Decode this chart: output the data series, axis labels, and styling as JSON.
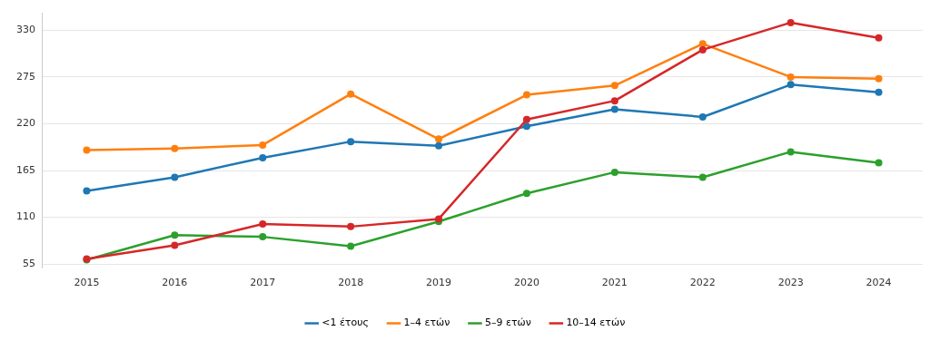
{
  "chart_data": {
    "type": "line",
    "categories": [
      "2015",
      "2016",
      "2017",
      "2018",
      "2019",
      "2020",
      "2021",
      "2022",
      "2023",
      "2024"
    ],
    "series": [
      {
        "name": "<1 έτους",
        "color": "#1f77b4",
        "values": [
          141,
          157,
          180,
          199,
          194,
          217,
          237,
          228,
          266,
          257
        ]
      },
      {
        "name": "1–4 ετών",
        "color": "#ff7f0e",
        "values": [
          189,
          191,
          195,
          255,
          202,
          254,
          265,
          314,
          275,
          273
        ]
      },
      {
        "name": "5–9 ετών",
        "color": "#2ca02c",
        "values": [
          60,
          89,
          87,
          76,
          105,
          138,
          163,
          157,
          187,
          174
        ]
      },
      {
        "name": "10–14 ετών",
        "color": "#d62728",
        "values": [
          61,
          77,
          102,
          99,
          108,
          225,
          247,
          307,
          339,
          321
        ]
      }
    ],
    "ylim": [
      50,
      350
    ],
    "yticks": [
      55,
      110,
      165,
      220,
      275,
      330
    ],
    "grid": "y",
    "legend": "bottom",
    "marker": "circle",
    "line_style": "solid"
  }
}
